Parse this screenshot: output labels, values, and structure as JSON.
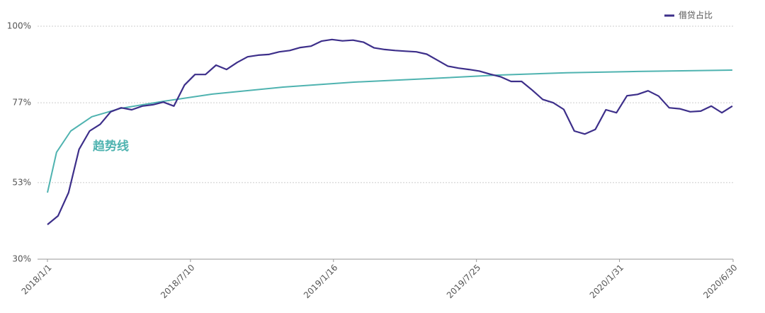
{
  "chart_data": {
    "type": "line",
    "x": [
      "2018/1/1",
      "2018/1/15",
      "2018/1/29",
      "2018/2/12",
      "2018/2/26",
      "2018/3/12",
      "2018/3/26",
      "2018/4/9",
      "2018/4/23",
      "2018/5/7",
      "2018/5/21",
      "2018/6/4",
      "2018/6/18",
      "2018/7/2",
      "2018/7/16",
      "2018/7/30",
      "2018/8/13",
      "2018/8/27",
      "2018/9/10",
      "2018/9/24",
      "2018/10/8",
      "2018/10/22",
      "2018/11/5",
      "2018/11/19",
      "2018/12/3",
      "2018/12/17",
      "2018/12/31",
      "2019/1/14",
      "2019/1/28",
      "2019/2/11",
      "2019/2/25",
      "2019/3/11",
      "2019/3/25",
      "2019/4/8",
      "2019/4/22",
      "2019/5/6",
      "2019/5/20",
      "2019/6/3",
      "2019/6/17",
      "2019/7/1",
      "2019/7/15",
      "2019/7/29",
      "2019/8/12",
      "2019/8/26",
      "2019/9/9",
      "2019/9/23",
      "2019/10/7",
      "2019/10/21",
      "2019/11/4",
      "2019/11/18",
      "2019/12/2",
      "2019/12/16",
      "2019/12/30",
      "2020/1/13",
      "2020/1/27",
      "2020/2/10",
      "2020/2/24",
      "2020/3/9",
      "2020/3/23",
      "2020/4/6",
      "2020/4/20",
      "2020/5/4",
      "2020/5/18",
      "2020/6/1",
      "2020/6/15",
      "2020/6/29"
    ],
    "series": [
      {
        "name": "借贷占比",
        "color": "#3d2f8a",
        "values": [
          40.4,
          43,
          50,
          63,
          68.5,
          70.5,
          74.3,
          75.5,
          74.9,
          76,
          76.4,
          77.2,
          76,
          82.3,
          85.5,
          85.5,
          88.3,
          87,
          89.1,
          90.8,
          91.3,
          91.5,
          92.3,
          92.7,
          93.6,
          94,
          95.5,
          96,
          95.6,
          95.8,
          95.2,
          93.5,
          93,
          92.7,
          92.5,
          92.3,
          91.6,
          89.8,
          88,
          87.4,
          87,
          86.5,
          85.6,
          84.8,
          83.4,
          83.4,
          80.8,
          78,
          77,
          75,
          68.5,
          67.6,
          69,
          74.9,
          74,
          79.1,
          79.5,
          80.6,
          79,
          75.5,
          75.2,
          74.3,
          74.5,
          76,
          74,
          76
        ]
      }
    ],
    "trend": {
      "label": "趋势线",
      "color": "#4fb3b0",
      "x": [
        "2018/1/1",
        "2018/1/13",
        "2018/2/1",
        "2018/3/1",
        "2018/4/8",
        "2018/6/3",
        "2018/8/8",
        "2018/11/10",
        "2019/2/12",
        "2019/5/18",
        "2019/8/20",
        "2019/11/22",
        "2020/2/24",
        "2020/6/29"
      ],
      "values": [
        50,
        62.1,
        68.5,
        72.8,
        75.3,
        77.4,
        79.6,
        81.7,
        83.2,
        84.2,
        85.3,
        86,
        86.4,
        86.8
      ]
    },
    "xlim": [
      "2018/1/1",
      "2020/6/30"
    ],
    "xticks": [
      "2018/1/1",
      "2018/7/10",
      "2019/1/16",
      "2019/7/25",
      "2020/1/31",
      "2020/6/30"
    ],
    "ylim": [
      30,
      100
    ],
    "yticks": [
      {
        "value": 30,
        "label": "30%"
      },
      {
        "value": 53,
        "label": "53%"
      },
      {
        "value": 77,
        "label": "77%"
      },
      {
        "value": 100,
        "label": "100%"
      }
    ],
    "grid": true,
    "legend": "top-right"
  }
}
